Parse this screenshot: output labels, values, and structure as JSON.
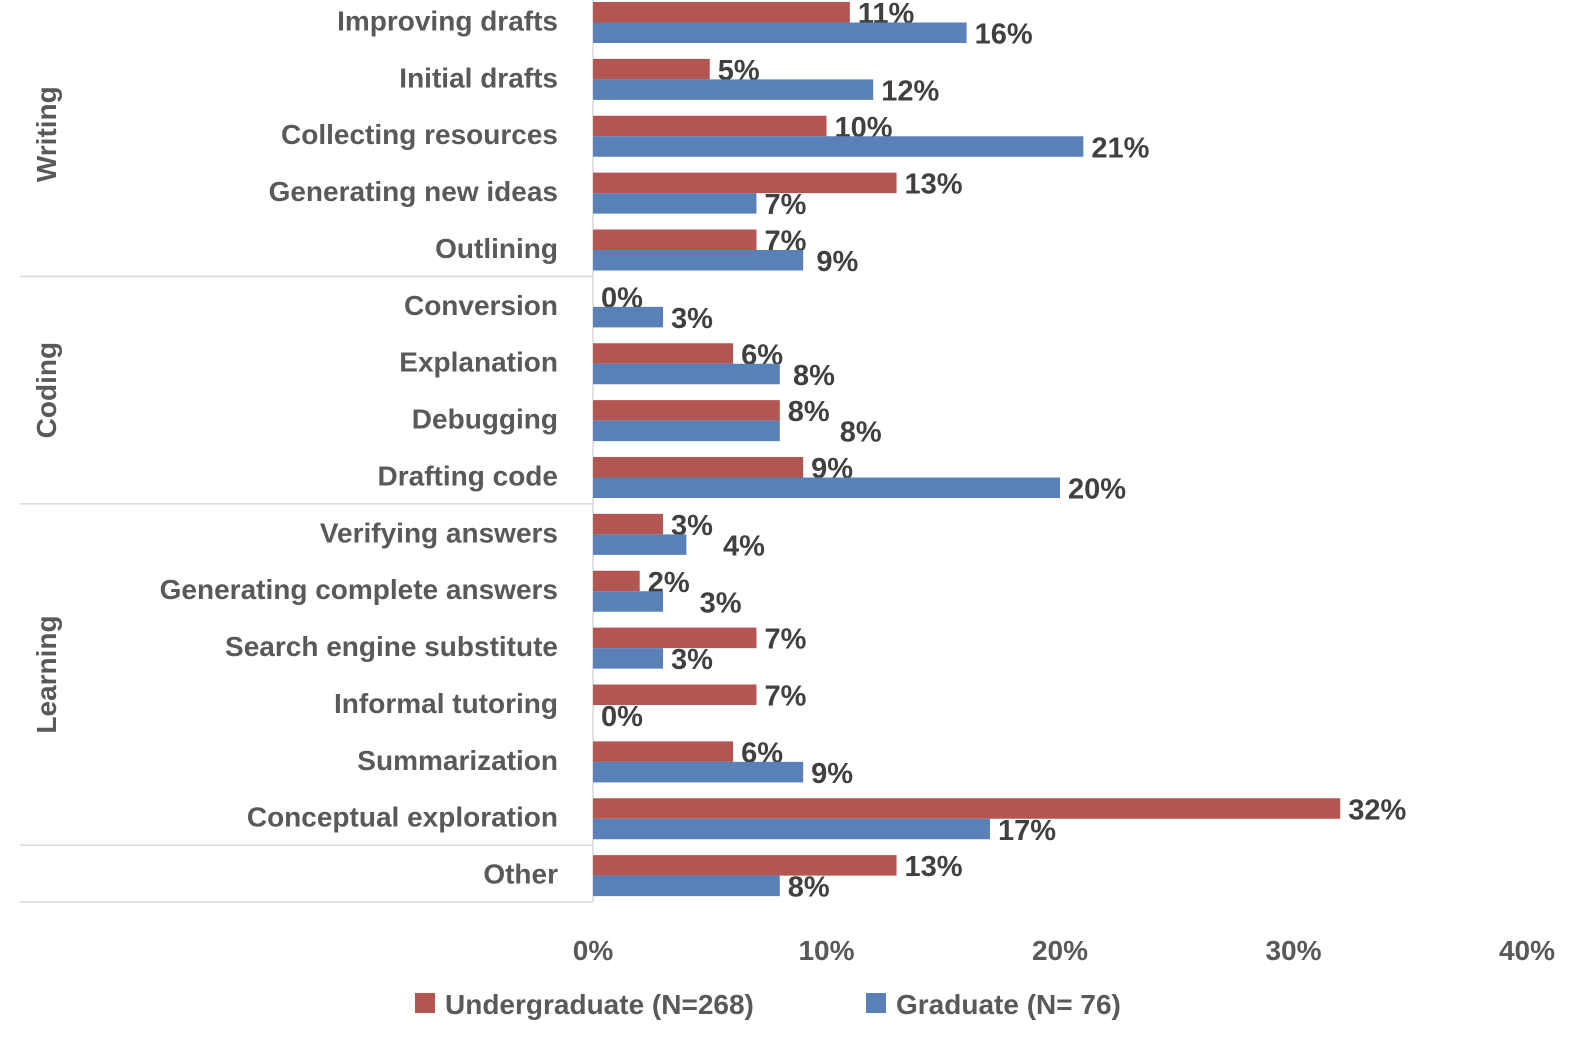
{
  "chart_data": {
    "type": "bar",
    "orientation": "horizontal",
    "title": "",
    "xlabel": "",
    "ylabel": "",
    "xlim": [
      0,
      40
    ],
    "x_ticks": [
      "0%",
      "10%",
      "20%",
      "30%",
      "40%"
    ],
    "grid": false,
    "legend_position": "bottom",
    "groups": [
      {
        "name": "Writing",
        "categories": [
          "Improving drafts",
          "Initial drafts",
          "Collecting resources",
          "Generating new ideas",
          "Outlining"
        ]
      },
      {
        "name": "Coding",
        "categories": [
          "Conversion",
          "Explanation",
          "Debugging",
          "Drafting code"
        ]
      },
      {
        "name": "Learning",
        "categories": [
          "Verifying answers",
          "Generating complete answers",
          "Search engine substitute",
          "Informal tutoring",
          "Summarization",
          "Conceptual exploration"
        ]
      },
      {
        "name": "",
        "categories": [
          "Other"
        ]
      }
    ],
    "categories": [
      "Improving drafts",
      "Initial drafts",
      "Collecting resources",
      "Generating new ideas",
      "Outlining",
      "Conversion",
      "Explanation",
      "Debugging",
      "Drafting code",
      "Verifying answers",
      "Generating complete answers",
      "Search engine substitute",
      "Informal tutoring",
      "Summarization",
      "Conceptual exploration",
      "Other"
    ],
    "series": [
      {
        "name": "Undergraduate (N=268)",
        "color": "#B35651",
        "values": [
          11,
          5,
          10,
          13,
          7,
          0,
          6,
          8,
          9,
          3,
          2,
          7,
          7,
          6,
          32,
          13
        ]
      },
      {
        "name": "Graduate (N= 76)",
        "color": "#5A80B8",
        "values": [
          16,
          12,
          21,
          7,
          9,
          3,
          8,
          8,
          20,
          4,
          3,
          3,
          0,
          9,
          17,
          8
        ]
      }
    ]
  }
}
